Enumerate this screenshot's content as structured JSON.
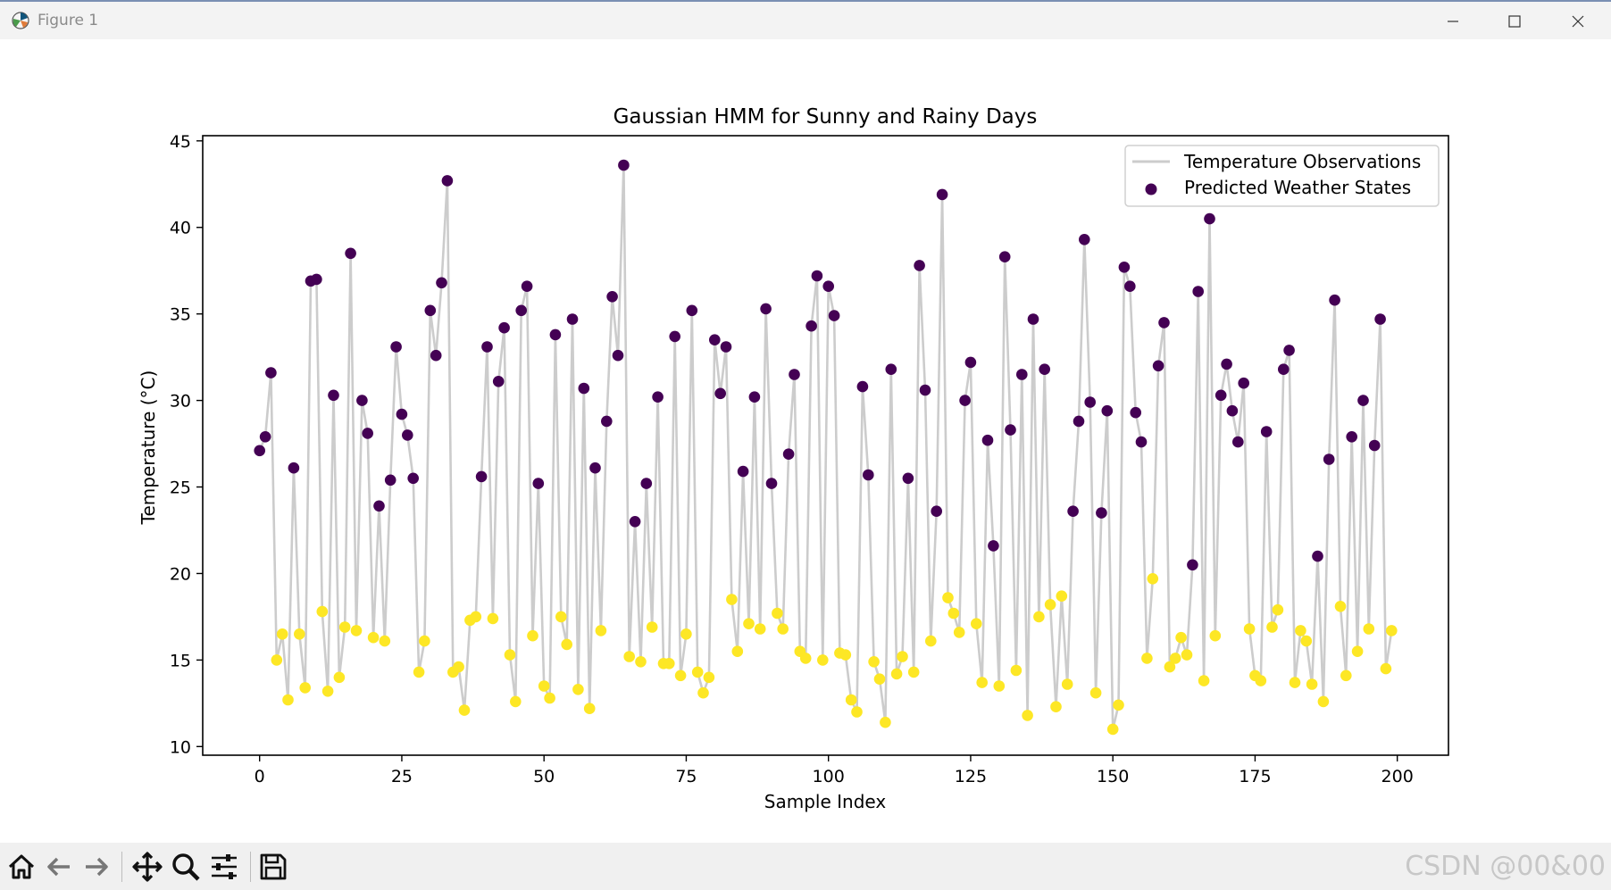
{
  "window": {
    "title": "Figure 1",
    "icons": [
      "matplotlib-logo-icon",
      "minimize-icon",
      "maximize-icon",
      "close-icon"
    ]
  },
  "toolbar": {
    "buttons": [
      "home-icon",
      "back-icon",
      "forward-icon",
      "pan-icon",
      "zoom-icon",
      "configure-subplots-icon",
      "save-icon"
    ]
  },
  "watermark": "CSDN @00&00",
  "chart_data": {
    "type": "line+scatter",
    "title": "Gaussian HMM for Sunny and Rainy Days",
    "xlabel": "Sample Index",
    "ylabel": "Temperature (°C)",
    "xlim": [
      -10,
      209
    ],
    "ylim": [
      9.5,
      45.3
    ],
    "xticks": [
      0,
      25,
      50,
      75,
      100,
      125,
      150,
      175,
      200
    ],
    "yticks": [
      10,
      15,
      20,
      25,
      30,
      35,
      40,
      45
    ],
    "grid": false,
    "legend": {
      "placement": "top-right",
      "entries": [
        "Temperature Observations",
        "Predicted Weather States"
      ]
    },
    "colors": {
      "line": "#cccccc",
      "state_0": "#440154",
      "state_1": "#fde725"
    },
    "series": [
      {
        "name": "Temperature Observations",
        "kind": "line",
        "x_start": 0,
        "y": [
          27.1,
          27.9,
          31.6,
          15.0,
          16.5,
          12.7,
          26.1,
          16.5,
          13.4,
          36.9,
          37.0,
          17.8,
          13.2,
          30.3,
          14.0,
          16.9,
          38.5,
          16.7,
          30.0,
          28.1,
          16.3,
          23.9,
          16.1,
          25.4,
          33.1,
          29.2,
          28.0,
          25.5,
          14.3,
          16.1,
          35.2,
          32.6,
          36.8,
          42.7,
          14.3,
          14.6,
          12.1,
          17.3,
          17.5,
          25.6,
          33.1,
          17.4,
          31.1,
          34.2,
          15.3,
          12.6,
          35.2,
          36.6,
          16.4,
          25.2,
          13.5,
          12.8,
          33.8,
          17.5,
          15.9,
          34.7,
          13.3,
          30.7,
          12.2,
          26.1,
          16.7,
          28.8,
          36.0,
          32.6,
          43.6,
          15.2,
          23.0,
          14.9,
          25.2,
          16.9,
          30.2,
          14.8,
          14.8,
          33.7,
          14.1,
          16.5,
          35.2,
          14.3,
          13.1,
          14.0,
          33.5,
          30.4,
          33.1,
          18.5,
          15.5,
          25.9,
          17.1,
          30.2,
          16.8,
          35.3,
          25.2,
          17.7,
          16.8,
          26.9,
          31.5,
          15.5,
          15.1,
          34.3,
          37.2,
          15.0,
          36.6,
          34.9,
          15.4,
          15.3,
          12.7,
          12.0,
          30.8,
          25.7,
          14.9,
          13.9,
          11.4,
          31.8,
          14.2,
          15.2,
          25.5,
          14.3,
          37.8,
          30.6,
          16.1,
          23.6,
          41.9,
          18.6,
          17.7,
          16.6,
          30.0,
          32.2,
          17.1,
          13.7,
          27.7,
          21.6,
          13.5,
          38.3,
          28.3,
          14.4,
          31.5,
          11.8,
          34.7,
          17.5,
          31.8,
          18.2,
          12.3,
          18.7,
          13.6,
          23.6,
          28.8,
          39.3,
          29.9,
          13.1,
          23.5,
          29.4,
          11.0,
          12.4,
          37.7,
          36.6,
          29.3,
          27.6,
          15.1,
          19.7,
          32.0,
          34.5,
          14.6,
          15.1,
          16.3,
          15.3,
          20.5,
          36.3,
          13.8,
          40.5,
          16.4,
          30.3,
          32.1,
          29.4,
          27.6,
          31.0,
          16.8,
          14.1,
          13.8,
          28.2,
          16.9,
          17.9,
          31.8,
          32.9,
          13.7,
          16.7,
          16.1,
          13.6,
          21.0,
          12.6,
          26.6,
          35.8,
          18.1,
          14.1,
          27.9,
          15.5,
          30.0,
          16.8,
          27.4,
          34.7,
          14.5,
          16.7
        ]
      },
      {
        "name": "Predicted Weather States",
        "kind": "scatter",
        "x_start": 0,
        "state": [
          0,
          0,
          0,
          1,
          1,
          1,
          0,
          1,
          1,
          0,
          0,
          1,
          1,
          0,
          1,
          1,
          0,
          1,
          0,
          0,
          1,
          0,
          1,
          0,
          0,
          0,
          0,
          0,
          1,
          1,
          0,
          0,
          0,
          0,
          1,
          1,
          1,
          1,
          1,
          0,
          0,
          1,
          0,
          0,
          1,
          1,
          0,
          0,
          1,
          0,
          1,
          1,
          0,
          1,
          1,
          0,
          1,
          0,
          1,
          0,
          1,
          0,
          0,
          0,
          0,
          1,
          0,
          1,
          0,
          1,
          0,
          1,
          1,
          0,
          1,
          1,
          0,
          1,
          1,
          1,
          0,
          0,
          0,
          1,
          1,
          0,
          1,
          0,
          1,
          0,
          0,
          1,
          1,
          0,
          0,
          1,
          1,
          0,
          0,
          1,
          0,
          0,
          1,
          1,
          1,
          1,
          0,
          0,
          1,
          1,
          1,
          0,
          1,
          1,
          0,
          1,
          0,
          0,
          1,
          0,
          0,
          1,
          1,
          1,
          0,
          0,
          1,
          1,
          0,
          0,
          1,
          0,
          0,
          1,
          0,
          1,
          0,
          1,
          0,
          1,
          1,
          1,
          1,
          0,
          0,
          0,
          0,
          1,
          0,
          0,
          1,
          1,
          0,
          0,
          0,
          0,
          1,
          1,
          0,
          0,
          1,
          1,
          1,
          1,
          0,
          0,
          1,
          0,
          1,
          0,
          0,
          0,
          0,
          0,
          1,
          1,
          1,
          0,
          1,
          1,
          0,
          0,
          1,
          1,
          1,
          1,
          0,
          1,
          0,
          0,
          1,
          1,
          0,
          1,
          0,
          1,
          0,
          0,
          1,
          1
        ]
      }
    ]
  }
}
